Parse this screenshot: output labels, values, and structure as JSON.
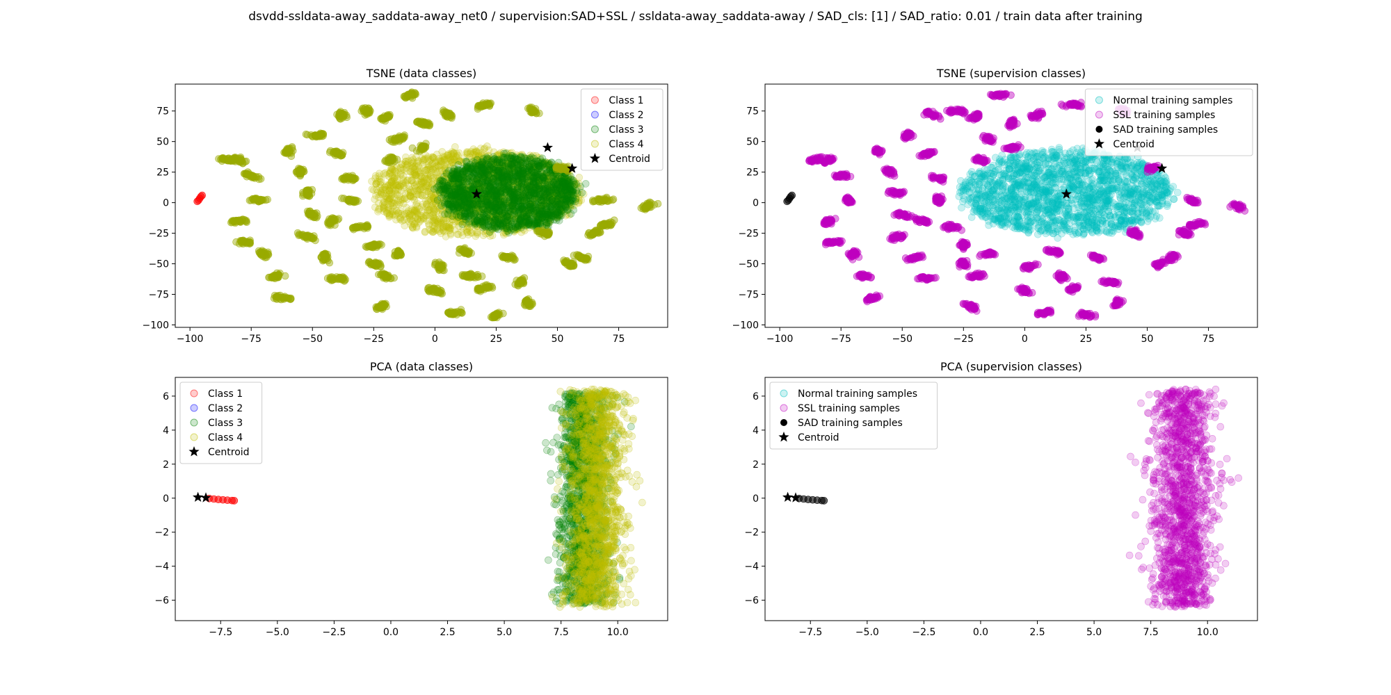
{
  "figure_title": "dsvdd-ssldata-away_saddata-away_net0 / supervision:SAD+SSL / ssldata-away_saddata-away / SAD_cls: [1] / SAD_ratio: 0.01 / train data after training",
  "colors": {
    "class1": "#ff0000",
    "class2": "#0000ff",
    "class3": "#008000",
    "class4": "#bfbf00",
    "normal": "#00bfbf",
    "ssl": "#bf00bf",
    "sad": "#000000",
    "centroid": "#000000"
  },
  "chart_data": [
    {
      "type": "scatter",
      "title": "TSNE (data classes)",
      "xlim": [
        -106,
        95
      ],
      "ylim": [
        -102,
        97
      ],
      "xticks": [
        -100,
        -75,
        -50,
        -25,
        0,
        25,
        50,
        75
      ],
      "yticks": [
        -100,
        -75,
        -50,
        -25,
        0,
        25,
        50,
        75
      ],
      "legend_position": "upper right",
      "legend": [
        {
          "label": "Class 1",
          "color": "#ff0000",
          "marker": "circle"
        },
        {
          "label": "Class 2",
          "color": "#0000ff",
          "marker": "circle"
        },
        {
          "label": "Class 3",
          "color": "#008000",
          "marker": "circle"
        },
        {
          "label": "Class 4",
          "color": "#bfbf00",
          "marker": "circle"
        },
        {
          "label": "Centroid",
          "color": "#000000",
          "marker": "star"
        }
      ],
      "series": [
        {
          "name": "Class 1",
          "color": "#ff0000",
          "points": [
            [
              -97,
              1
            ],
            [
              -96.5,
              2
            ],
            [
              -96,
              3.5
            ],
            [
              -95.5,
              5
            ],
            [
              -95,
              6
            ]
          ]
        },
        {
          "name": "Class 4 (main cluster)",
          "color": "#bfbf00",
          "ellipse": {
            "cx": 17,
            "cy": 8,
            "rx": 43,
            "ry": 35
          }
        },
        {
          "name": "Class 3 (main cluster)",
          "color": "#008000",
          "ellipse": {
            "cx": 30,
            "cy": 8,
            "rx": 28,
            "ry": 30
          }
        },
        {
          "name": "Class 3/4 islands",
          "color": "#9aaa00",
          "points": [
            [
              -80,
              35
            ],
            [
              -75,
              22
            ],
            [
              -72,
              2
            ],
            [
              -80,
              -15
            ],
            [
              -70,
              -42
            ],
            [
              -65,
              -60
            ],
            [
              -62,
              -78
            ],
            [
              -60,
              42
            ],
            [
              -55,
              25
            ],
            [
              -52,
              8
            ],
            [
              -50,
              -10
            ],
            [
              -52,
              -28
            ],
            [
              -45,
              -45
            ],
            [
              -40,
              -62
            ],
            [
              -48,
              55
            ],
            [
              -40,
              40
            ],
            [
              -35,
              20
            ],
            [
              -35,
              2
            ],
            [
              -30,
              -20
            ],
            [
              -25,
              -35
            ],
            [
              -25,
              -50
            ],
            [
              -20,
              -60
            ],
            [
              -22,
              -85
            ],
            [
              -38,
              72
            ],
            [
              -28,
              75
            ],
            [
              -20,
              70
            ],
            [
              -15,
              52
            ],
            [
              -18,
              35
            ],
            [
              -10,
              88
            ],
            [
              -5,
              65
            ],
            [
              -5,
              45
            ],
            [
              2,
              -52
            ],
            [
              0,
              -72
            ],
            [
              8,
              -90
            ],
            [
              15,
              -60
            ],
            [
              12,
              -40
            ],
            [
              20,
              -70
            ],
            [
              25,
              -92
            ],
            [
              30,
              -45
            ],
            [
              35,
              -65
            ],
            [
              40,
              75
            ],
            [
              20,
              80
            ],
            [
              5,
              72
            ],
            [
              45,
              -25
            ],
            [
              55,
              -50
            ],
            [
              60,
              -45
            ],
            [
              65,
              -25
            ],
            [
              70,
              -18
            ],
            [
              68,
              2
            ],
            [
              52,
              28
            ],
            [
              87,
              -3
            ],
            [
              -85,
              35
            ],
            [
              -78,
              -32
            ],
            [
              -42,
              -15
            ],
            [
              -15,
              -42
            ],
            [
              38,
              -82
            ]
          ]
        }
      ],
      "centroids": [
        [
          17,
          7
        ],
        [
          46,
          45
        ],
        [
          56,
          28
        ]
      ]
    },
    {
      "type": "scatter",
      "title": "TSNE (supervision classes)",
      "xlim": [
        -106,
        95
      ],
      "ylim": [
        -102,
        97
      ],
      "xticks": [
        -100,
        -75,
        -50,
        -25,
        0,
        25,
        50,
        75
      ],
      "yticks": [
        -100,
        -75,
        -50,
        -25,
        0,
        25,
        50,
        75
      ],
      "legend_position": "upper right",
      "legend": [
        {
          "label": "Normal training samples",
          "color": "#00bfbf",
          "marker": "circle"
        },
        {
          "label": "SSL training samples",
          "color": "#bf00bf",
          "marker": "circle"
        },
        {
          "label": "SAD training samples",
          "color": "#000000",
          "marker": "dot"
        },
        {
          "label": "Centroid",
          "color": "#000000",
          "marker": "star"
        }
      ],
      "series": [
        {
          "name": "Normal training samples",
          "color": "#00bfbf",
          "ellipse": {
            "cx": 17,
            "cy": 8,
            "rx": 43,
            "ry": 35
          }
        },
        {
          "name": "SSL training samples",
          "color": "#bf00bf",
          "points": [
            [
              -80,
              35
            ],
            [
              -75,
              22
            ],
            [
              -72,
              2
            ],
            [
              -80,
              -15
            ],
            [
              -70,
              -42
            ],
            [
              -65,
              -60
            ],
            [
              -62,
              -78
            ],
            [
              -60,
              42
            ],
            [
              -55,
              25
            ],
            [
              -52,
              8
            ],
            [
              -50,
              -10
            ],
            [
              -52,
              -28
            ],
            [
              -45,
              -45
            ],
            [
              -40,
              -62
            ],
            [
              -48,
              55
            ],
            [
              -40,
              40
            ],
            [
              -35,
              20
            ],
            [
              -35,
              2
            ],
            [
              -30,
              -20
            ],
            [
              -25,
              -35
            ],
            [
              -25,
              -50
            ],
            [
              -20,
              -60
            ],
            [
              -22,
              -85
            ],
            [
              -38,
              72
            ],
            [
              -28,
              75
            ],
            [
              -20,
              70
            ],
            [
              -15,
              52
            ],
            [
              -18,
              35
            ],
            [
              -10,
              88
            ],
            [
              -5,
              65
            ],
            [
              -5,
              45
            ],
            [
              2,
              -52
            ],
            [
              0,
              -72
            ],
            [
              8,
              -90
            ],
            [
              15,
              -60
            ],
            [
              12,
              -40
            ],
            [
              20,
              -70
            ],
            [
              25,
              -92
            ],
            [
              30,
              -45
            ],
            [
              35,
              -65
            ],
            [
              40,
              75
            ],
            [
              20,
              80
            ],
            [
              5,
              72
            ],
            [
              45,
              -25
            ],
            [
              55,
              -50
            ],
            [
              60,
              -45
            ],
            [
              65,
              -25
            ],
            [
              70,
              -18
            ],
            [
              68,
              2
            ],
            [
              52,
              28
            ],
            [
              87,
              -3
            ],
            [
              -85,
              35
            ],
            [
              -78,
              -32
            ],
            [
              -42,
              -15
            ],
            [
              -15,
              -42
            ],
            [
              38,
              -82
            ]
          ]
        },
        {
          "name": "SAD training samples",
          "color": "#000000",
          "points": [
            [
              -97,
              1
            ],
            [
              -96.5,
              2
            ],
            [
              -96,
              3.5
            ],
            [
              -95.5,
              5
            ],
            [
              -95,
              6
            ]
          ]
        }
      ],
      "centroids": [
        [
          17,
          7
        ],
        [
          46,
          45
        ],
        [
          56,
          28
        ]
      ]
    },
    {
      "type": "scatter",
      "title": "PCA (data classes)",
      "xlim": [
        -9.5,
        12.2
      ],
      "ylim": [
        -7.2,
        7.1
      ],
      "xticks": [
        -7.5,
        -5.0,
        -2.5,
        0.0,
        2.5,
        5.0,
        7.5,
        10.0
      ],
      "xtick_labels": [
        "−7.5",
        "−5.0",
        "−2.5",
        "0.0",
        "2.5",
        "5.0",
        "7.5",
        "10.0"
      ],
      "yticks": [
        -6,
        -4,
        -2,
        0,
        2,
        4,
        6
      ],
      "legend_position": "upper left",
      "legend": [
        {
          "label": "Class 1",
          "color": "#ff0000",
          "marker": "circle"
        },
        {
          "label": "Class 2",
          "color": "#0000ff",
          "marker": "circle"
        },
        {
          "label": "Class 3",
          "color": "#008000",
          "marker": "circle"
        },
        {
          "label": "Class 4",
          "color": "#bfbf00",
          "marker": "circle"
        },
        {
          "label": "Centroid",
          "color": "#000000",
          "marker": "star"
        }
      ],
      "series": [
        {
          "name": "Class 1",
          "color": "#ff0000",
          "points": [
            [
              -8.0,
              -0.02
            ],
            [
              -7.8,
              -0.05
            ],
            [
              -7.6,
              -0.08
            ],
            [
              -7.4,
              -0.1
            ],
            [
              -7.2,
              -0.12
            ],
            [
              -7.0,
              -0.14
            ],
            [
              -6.9,
              -0.15
            ]
          ]
        },
        {
          "name": "Class 3",
          "color": "#008000",
          "band": {
            "x_min": 7.0,
            "x_max": 10.0,
            "y_min": -6.2,
            "y_max": 6.2
          }
        },
        {
          "name": "Class 4",
          "color": "#bfbf00",
          "band": {
            "x_min": 7.3,
            "x_max": 10.8,
            "y_min": -6.4,
            "y_max": 6.4
          }
        }
      ],
      "centroids": [
        [
          -8.5,
          0.05
        ],
        [
          -8.15,
          0.02
        ]
      ]
    },
    {
      "type": "scatter",
      "title": "PCA (supervision classes)",
      "xlim": [
        -9.5,
        12.2
      ],
      "ylim": [
        -7.2,
        7.1
      ],
      "xticks": [
        -7.5,
        -5.0,
        -2.5,
        0.0,
        2.5,
        5.0,
        7.5,
        10.0
      ],
      "xtick_labels": [
        "−7.5",
        "−5.0",
        "−2.5",
        "0.0",
        "2.5",
        "5.0",
        "7.5",
        "10.0"
      ],
      "yticks": [
        -6,
        -4,
        -2,
        0,
        2,
        4,
        6
      ],
      "legend_position": "upper left",
      "legend": [
        {
          "label": "Normal training samples",
          "color": "#00bfbf",
          "marker": "circle"
        },
        {
          "label": "SSL training samples",
          "color": "#bf00bf",
          "marker": "circle"
        },
        {
          "label": "SAD training samples",
          "color": "#000000",
          "marker": "dot"
        },
        {
          "label": "Centroid",
          "color": "#000000",
          "marker": "star"
        }
      ],
      "series": [
        {
          "name": "SSL training samples",
          "color": "#bf00bf",
          "band": {
            "x_min": 7.0,
            "x_max": 10.8,
            "y_min": -6.4,
            "y_max": 6.4
          }
        },
        {
          "name": "SAD training samples",
          "color": "#000000",
          "points": [
            [
              -8.0,
              -0.02
            ],
            [
              -7.8,
              -0.05
            ],
            [
              -7.6,
              -0.08
            ],
            [
              -7.4,
              -0.1
            ],
            [
              -7.2,
              -0.12
            ],
            [
              -7.0,
              -0.14
            ],
            [
              -6.9,
              -0.15
            ]
          ]
        }
      ],
      "centroids": [
        [
          -8.5,
          0.05
        ],
        [
          -8.15,
          0.02
        ]
      ]
    }
  ]
}
